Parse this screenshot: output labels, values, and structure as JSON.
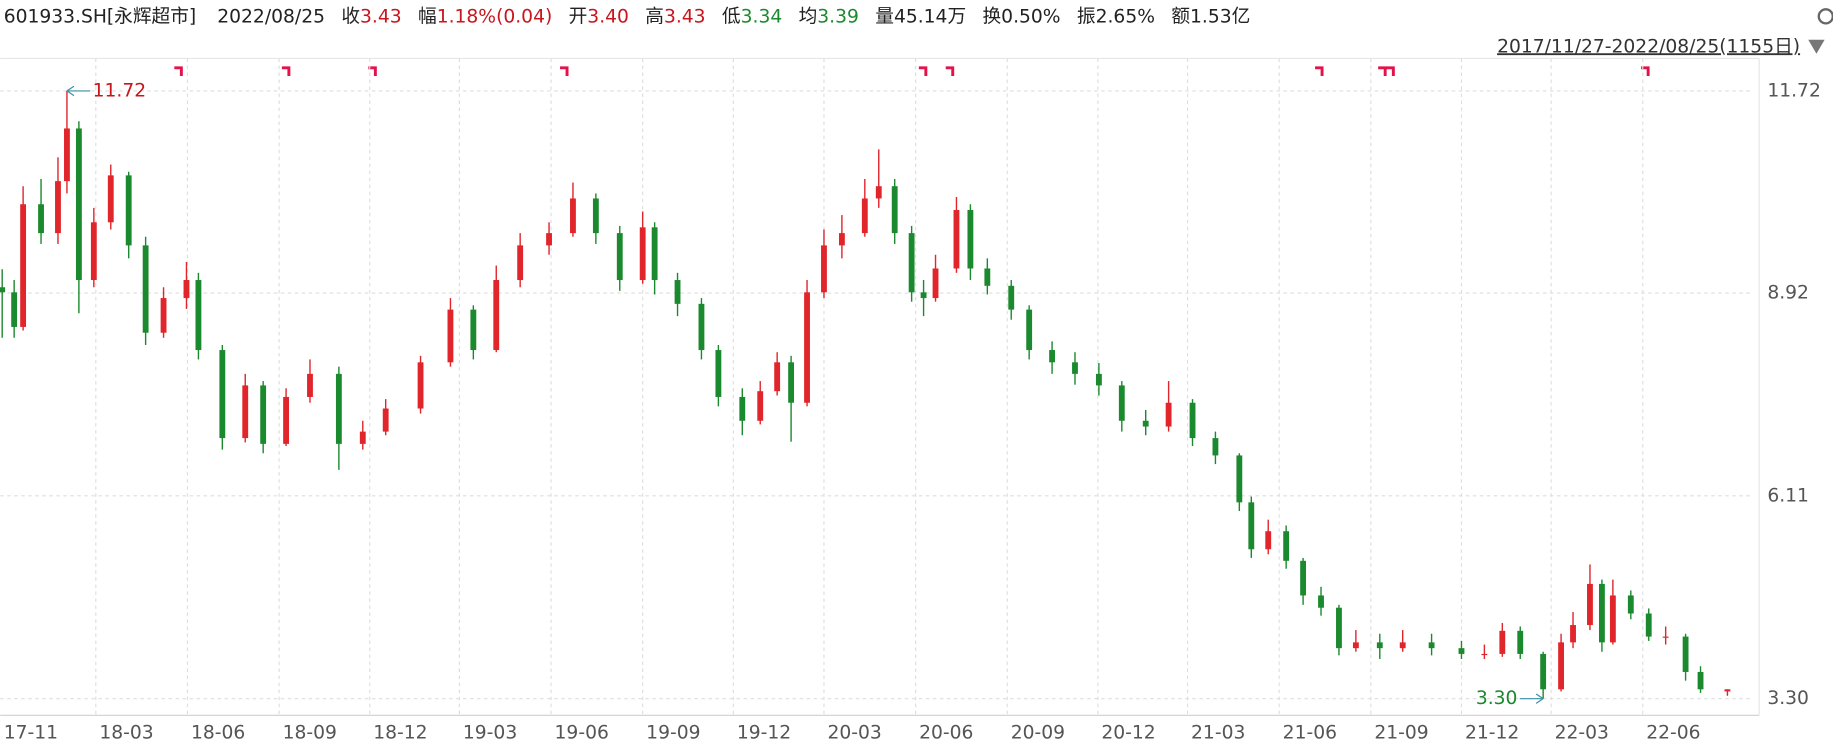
{
  "header": {
    "code": "601933.SH[永辉超市]",
    "date": "2022/08/25",
    "items": [
      {
        "label": "收",
        "value": "3.43",
        "color": "#c8161d"
      },
      {
        "label": "幅",
        "value": "1.18%(0.04)",
        "color": "#c8161d"
      },
      {
        "label": "开",
        "value": "3.40",
        "color": "#c8161d"
      },
      {
        "label": "高",
        "value": "3.43",
        "color": "#c8161d"
      },
      {
        "label": "低",
        "value": "3.34",
        "color": "#1b8a2f"
      },
      {
        "label": "均",
        "value": "3.39",
        "color": "#1b8a2f"
      },
      {
        "label": "量",
        "value": "45.14万",
        "color": "#222222"
      },
      {
        "label": "换",
        "value": "0.50%",
        "color": "#222222"
      },
      {
        "label": "振",
        "value": "2.65%",
        "color": "#222222"
      },
      {
        "label": "额",
        "value": "1.53亿",
        "color": "#222222"
      }
    ]
  },
  "chart_data": {
    "type": "candlestick",
    "range_label": "2017/11/27-2022/08/25(1155日)",
    "x": [
      "2017-11-27",
      "2017-12-09",
      "2017-12-18",
      "2018-01-05",
      "2018-01-22",
      "2018-01-31",
      "2018-02-12",
      "2018-02-27",
      "2018-03-16",
      "2018-04-03",
      "2018-04-20",
      "2018-05-08",
      "2018-05-31",
      "2018-06-12",
      "2018-07-06",
      "2018-07-29",
      "2018-08-16",
      "2018-09-08",
      "2018-10-02",
      "2018-10-31",
      "2018-11-24",
      "2018-12-17",
      "2019-01-21",
      "2019-02-20",
      "2019-03-15",
      "2019-04-07",
      "2019-05-01",
      "2019-05-30",
      "2019-06-23",
      "2019-07-16",
      "2019-08-09",
      "2019-09-01",
      "2019-09-13",
      "2019-10-06",
      "2019-10-30",
      "2019-11-16",
      "2019-12-10",
      "2019-12-28",
      "2020-01-14",
      "2020-01-28",
      "2020-02-13",
      "2020-03-01",
      "2020-03-19",
      "2020-04-11",
      "2020-04-25",
      "2020-05-11",
      "2020-05-28",
      "2020-06-09",
      "2020-06-21",
      "2020-07-12",
      "2020-07-26",
      "2020-08-12",
      "2020-09-05",
      "2020-09-23",
      "2020-10-16",
      "2020-11-08",
      "2020-12-02",
      "2020-12-25",
      "2021-01-18",
      "2021-02-10",
      "2021-03-06",
      "2021-03-29",
      "2021-04-22",
      "2021-05-04",
      "2021-05-21",
      "2021-06-08",
      "2021-06-25",
      "2021-07-13",
      "2021-07-31",
      "2021-08-17",
      "2021-09-10",
      "2021-10-03",
      "2021-11-01",
      "2021-12-01",
      "2021-12-24",
      "2022-01-11",
      "2022-01-29",
      "2022-02-21",
      "2022-03-11",
      "2022-03-23",
      "2022-04-09",
      "2022-04-21",
      "2022-05-02",
      "2022-05-20",
      "2022-06-07",
      "2022-06-24",
      "2022-07-14",
      "2022-07-29",
      "2022-08-25"
    ],
    "open": [
      9.0,
      8.93,
      8.45,
      10.15,
      9.75,
      10.47,
      11.2,
      9.1,
      9.9,
      10.55,
      9.58,
      8.37,
      8.85,
      9.1,
      8.13,
      6.91,
      7.64,
      6.83,
      7.48,
      7.8,
      6.83,
      7.0,
      7.32,
      7.96,
      8.69,
      8.13,
      9.1,
      9.58,
      9.75,
      10.23,
      9.75,
      9.1,
      9.83,
      9.1,
      8.77,
      8.13,
      7.48,
      7.15,
      7.56,
      7.96,
      7.4,
      8.93,
      9.58,
      9.75,
      10.23,
      10.4,
      9.75,
      8.93,
      8.85,
      9.26,
      10.07,
      9.26,
      9.02,
      8.69,
      8.13,
      7.96,
      7.8,
      7.64,
      7.15,
      7.07,
      7.4,
      6.91,
      6.67,
      6.02,
      5.37,
      5.62,
      5.21,
      4.73,
      4.56,
      4.0,
      4.08,
      4.0,
      4.08,
      4.0,
      3.92,
      3.92,
      4.24,
      3.92,
      3.43,
      4.08,
      4.32,
      4.89,
      4.08,
      4.73,
      4.48,
      4.16,
      4.16,
      3.67,
      3.4
    ],
    "high": [
      9.25,
      9.1,
      10.4,
      10.5,
      10.8,
      11.72,
      11.3,
      10.1,
      10.7,
      10.6,
      9.7,
      9.0,
      9.35,
      9.2,
      8.2,
      7.8,
      7.7,
      7.6,
      8.0,
      7.9,
      7.15,
      7.45,
      8.05,
      8.85,
      8.75,
      9.3,
      9.75,
      9.9,
      10.45,
      10.3,
      9.85,
      10.05,
      9.9,
      9.2,
      8.85,
      8.2,
      7.6,
      7.7,
      8.1,
      8.05,
      9.1,
      9.8,
      10.0,
      10.5,
      10.91,
      10.5,
      9.85,
      9.1,
      9.45,
      10.25,
      10.15,
      9.4,
      9.1,
      8.75,
      8.25,
      8.1,
      7.95,
      7.7,
      7.3,
      7.7,
      7.45,
      7.0,
      6.7,
      6.1,
      5.78,
      5.7,
      5.25,
      4.85,
      4.6,
      4.25,
      4.2,
      4.25,
      4.2,
      4.1,
      4.05,
      4.35,
      4.3,
      3.95,
      4.2,
      4.5,
      5.16,
      4.95,
      4.95,
      4.8,
      4.55,
      4.3,
      4.2,
      3.75,
      3.43
    ],
    "low": [
      8.3,
      8.3,
      8.4,
      9.6,
      9.6,
      10.3,
      8.64,
      9.0,
      9.8,
      9.4,
      8.2,
      8.3,
      8.7,
      8.0,
      6.75,
      6.85,
      6.7,
      6.8,
      7.4,
      6.47,
      6.75,
      6.95,
      7.25,
      7.9,
      8.0,
      8.1,
      9.0,
      9.45,
      9.7,
      9.6,
      8.95,
      9.05,
      8.9,
      8.6,
      8.0,
      7.35,
      6.95,
      7.1,
      7.5,
      6.86,
      7.35,
      8.85,
      9.4,
      9.7,
      10.1,
      9.6,
      8.8,
      8.6,
      8.8,
      9.2,
      9.1,
      8.9,
      8.55,
      8.0,
      7.8,
      7.65,
      7.5,
      7.0,
      6.95,
      7.0,
      6.8,
      6.55,
      5.9,
      5.25,
      5.3,
      5.1,
      4.6,
      4.45,
      3.9,
      3.95,
      3.85,
      3.95,
      3.9,
      3.85,
      3.85,
      3.88,
      3.85,
      3.3,
      3.4,
      4.0,
      4.25,
      3.95,
      4.05,
      4.4,
      4.1,
      4.05,
      3.55,
      3.38,
      3.34
    ],
    "close": [
      8.93,
      8.45,
      10.15,
      9.75,
      10.47,
      11.2,
      9.1,
      9.9,
      10.55,
      9.58,
      8.37,
      8.85,
      9.1,
      8.13,
      6.91,
      7.64,
      6.83,
      7.48,
      7.8,
      6.83,
      7.0,
      7.32,
      7.96,
      8.69,
      8.13,
      9.1,
      9.58,
      9.75,
      10.23,
      9.75,
      9.1,
      9.83,
      9.1,
      8.77,
      8.13,
      7.48,
      7.15,
      7.56,
      7.96,
      7.4,
      8.93,
      9.58,
      9.75,
      10.23,
      10.4,
      9.75,
      8.93,
      8.85,
      9.26,
      10.07,
      9.26,
      9.02,
      8.69,
      8.13,
      7.96,
      7.8,
      7.64,
      7.15,
      7.07,
      7.4,
      6.91,
      6.67,
      6.02,
      5.37,
      5.62,
      5.21,
      4.73,
      4.56,
      4.0,
      4.08,
      4.0,
      4.08,
      4.0,
      3.92,
      3.92,
      4.24,
      3.92,
      3.43,
      4.08,
      4.32,
      4.89,
      4.08,
      4.73,
      4.48,
      4.16,
      4.16,
      3.67,
      3.43,
      3.43
    ],
    "up_color": "#e0252b",
    "down_color": "#1b8a2f",
    "xlim": [
      "2017-11-25",
      "2022-09-20"
    ],
    "xticks": [
      {
        "value": "2017-11-25",
        "label": "17-11"
      },
      {
        "value": "2018-03-01",
        "label": "18-03"
      },
      {
        "value": "2018-06-01",
        "label": "18-06"
      },
      {
        "value": "2018-09-01",
        "label": "18-09"
      },
      {
        "value": "2018-12-01",
        "label": "18-12"
      },
      {
        "value": "2019-03-01",
        "label": "19-03"
      },
      {
        "value": "2019-06-01",
        "label": "19-06"
      },
      {
        "value": "2019-09-01",
        "label": "19-09"
      },
      {
        "value": "2019-12-01",
        "label": "19-12"
      },
      {
        "value": "2020-03-01",
        "label": "20-03"
      },
      {
        "value": "2020-06-01",
        "label": "20-06"
      },
      {
        "value": "2020-09-01",
        "label": "20-09"
      },
      {
        "value": "2020-12-01",
        "label": "20-12"
      },
      {
        "value": "2021-03-01",
        "label": "21-03"
      },
      {
        "value": "2021-06-01",
        "label": "21-06"
      },
      {
        "value": "2021-09-01",
        "label": "21-09"
      },
      {
        "value": "2021-12-01",
        "label": "21-12"
      },
      {
        "value": "2022-03-01",
        "label": "22-03"
      },
      {
        "value": "2022-06-01",
        "label": "22-06"
      }
    ],
    "ylim": [
      3.07,
      12.17
    ],
    "yticks": [
      {
        "value": 3.3,
        "label": "3.30"
      },
      6.11,
      8.92,
      11.72
    ],
    "grid": true,
    "annotations": [
      {
        "text": "11.72",
        "x": "2018-01-31",
        "y": 11.72,
        "color": "#c8161d",
        "side": "right"
      },
      {
        "text": "3.30",
        "x": "2022-02-21",
        "y": 3.3,
        "color": "#1b8a2f",
        "side": "left"
      }
    ]
  }
}
